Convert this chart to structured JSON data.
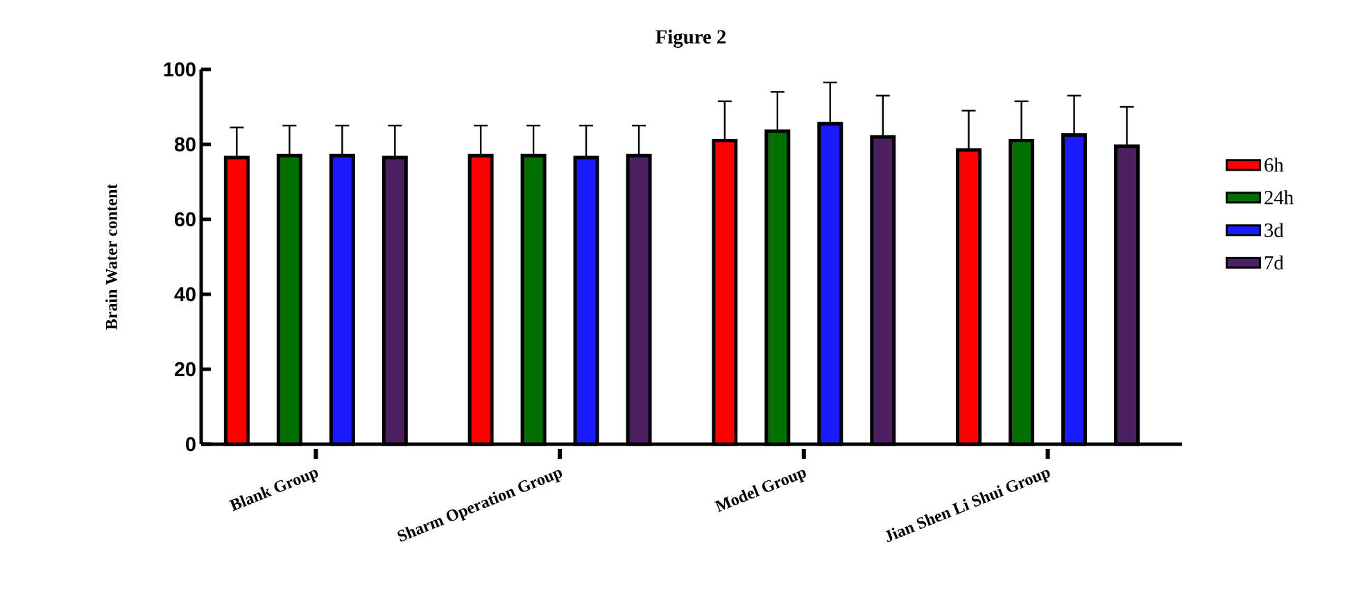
{
  "chart_data": {
    "type": "bar",
    "title": "Figure 2",
    "ylabel": "Brain Water content",
    "categories": [
      "Blank Group",
      "Sharm Operation Group",
      "Model Group",
      "Jian Shen Li Shui Group"
    ],
    "series": [
      {
        "name": "6h",
        "color": "#ff0000",
        "values": [
          76.5,
          77,
          81,
          78.5
        ],
        "errors": [
          8,
          8,
          10.5,
          10.5
        ]
      },
      {
        "name": "24h",
        "color": "#007000",
        "values": [
          77,
          77,
          83.5,
          81
        ],
        "errors": [
          8,
          8,
          10.5,
          10.5
        ]
      },
      {
        "name": "3d",
        "color": "#1a1aff",
        "values": [
          77,
          76.5,
          85.5,
          82.5
        ],
        "errors": [
          8,
          8.5,
          11,
          10.5
        ]
      },
      {
        "name": "7d",
        "color": "#4a2060",
        "values": [
          76.5,
          77,
          82,
          79.5
        ],
        "errors": [
          8.5,
          8,
          11,
          10.5
        ]
      }
    ],
    "ylim": [
      0,
      100
    ],
    "yticks": [
      0,
      20,
      40,
      60,
      80,
      100
    ],
    "legend": "right"
  }
}
